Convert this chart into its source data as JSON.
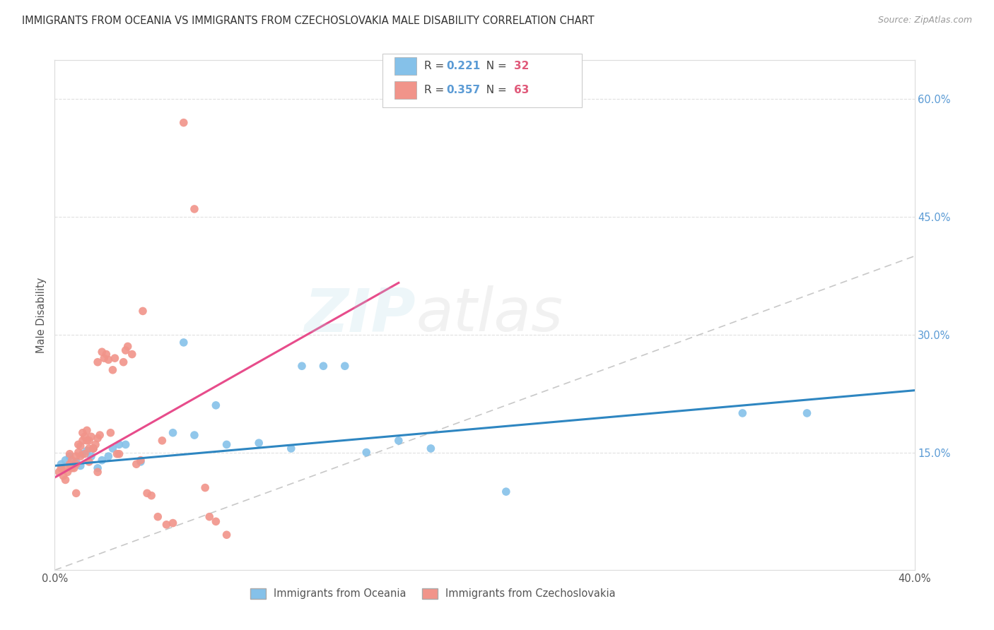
{
  "title": "IMMIGRANTS FROM OCEANIA VS IMMIGRANTS FROM CZECHOSLOVAKIA MALE DISABILITY CORRELATION CHART",
  "source": "Source: ZipAtlas.com",
  "ylabel": "Male Disability",
  "xlim": [
    0.0,
    0.4
  ],
  "ylim": [
    0.0,
    0.65
  ],
  "yticks_right": [
    0.15,
    0.3,
    0.45,
    0.6
  ],
  "ytick_labels_right": [
    "15.0%",
    "30.0%",
    "45.0%",
    "60.0%"
  ],
  "legend_label_1": "Immigrants from Oceania",
  "legend_label_2": "Immigrants from Czechoslovakia",
  "blue_color": "#85c1e9",
  "pink_color": "#f1948a",
  "blue_line_color": "#2e86c1",
  "pink_line_color": "#e74c8b",
  "dashed_line_color": "#c8c8c8",
  "background_color": "#ffffff",
  "blue_r": "0.221",
  "blue_n": "32",
  "pink_r": "0.357",
  "pink_n": "63",
  "blue_points_x": [
    0.003,
    0.005,
    0.007,
    0.01,
    0.012,
    0.013,
    0.015,
    0.017,
    0.018,
    0.02,
    0.022,
    0.025,
    0.027,
    0.03,
    0.033,
    0.04,
    0.055,
    0.06,
    0.065,
    0.075,
    0.08,
    0.095,
    0.11,
    0.115,
    0.125,
    0.135,
    0.145,
    0.16,
    0.175,
    0.21,
    0.32,
    0.35
  ],
  "blue_points_y": [
    0.135,
    0.14,
    0.145,
    0.138,
    0.133,
    0.148,
    0.152,
    0.145,
    0.155,
    0.13,
    0.14,
    0.145,
    0.155,
    0.16,
    0.16,
    0.138,
    0.175,
    0.29,
    0.172,
    0.21,
    0.16,
    0.162,
    0.155,
    0.26,
    0.26,
    0.26,
    0.15,
    0.165,
    0.155,
    0.1,
    0.2,
    0.2
  ],
  "pink_points_x": [
    0.002,
    0.003,
    0.004,
    0.005,
    0.005,
    0.006,
    0.007,
    0.007,
    0.008,
    0.008,
    0.009,
    0.01,
    0.01,
    0.011,
    0.011,
    0.012,
    0.013,
    0.013,
    0.014,
    0.015,
    0.015,
    0.016,
    0.016,
    0.017,
    0.018,
    0.019,
    0.02,
    0.02,
    0.021,
    0.022,
    0.023,
    0.024,
    0.025,
    0.026,
    0.027,
    0.028,
    0.029,
    0.03,
    0.032,
    0.033,
    0.034,
    0.036,
    0.038,
    0.04,
    0.041,
    0.043,
    0.045,
    0.048,
    0.05,
    0.052,
    0.055,
    0.06,
    0.065,
    0.07,
    0.072,
    0.075,
    0.08,
    0.01,
    0.012,
    0.014,
    0.016,
    0.018,
    0.02
  ],
  "pink_points_y": [
    0.125,
    0.13,
    0.12,
    0.115,
    0.13,
    0.125,
    0.135,
    0.148,
    0.13,
    0.14,
    0.13,
    0.135,
    0.145,
    0.15,
    0.16,
    0.145,
    0.165,
    0.175,
    0.17,
    0.165,
    0.178,
    0.155,
    0.165,
    0.17,
    0.155,
    0.16,
    0.168,
    0.265,
    0.172,
    0.278,
    0.27,
    0.275,
    0.268,
    0.175,
    0.255,
    0.27,
    0.148,
    0.148,
    0.265,
    0.28,
    0.285,
    0.275,
    0.135,
    0.14,
    0.33,
    0.098,
    0.095,
    0.068,
    0.165,
    0.058,
    0.06,
    0.57,
    0.46,
    0.105,
    0.068,
    0.062,
    0.045,
    0.098,
    0.158,
    0.148,
    0.138,
    0.155,
    0.125
  ]
}
